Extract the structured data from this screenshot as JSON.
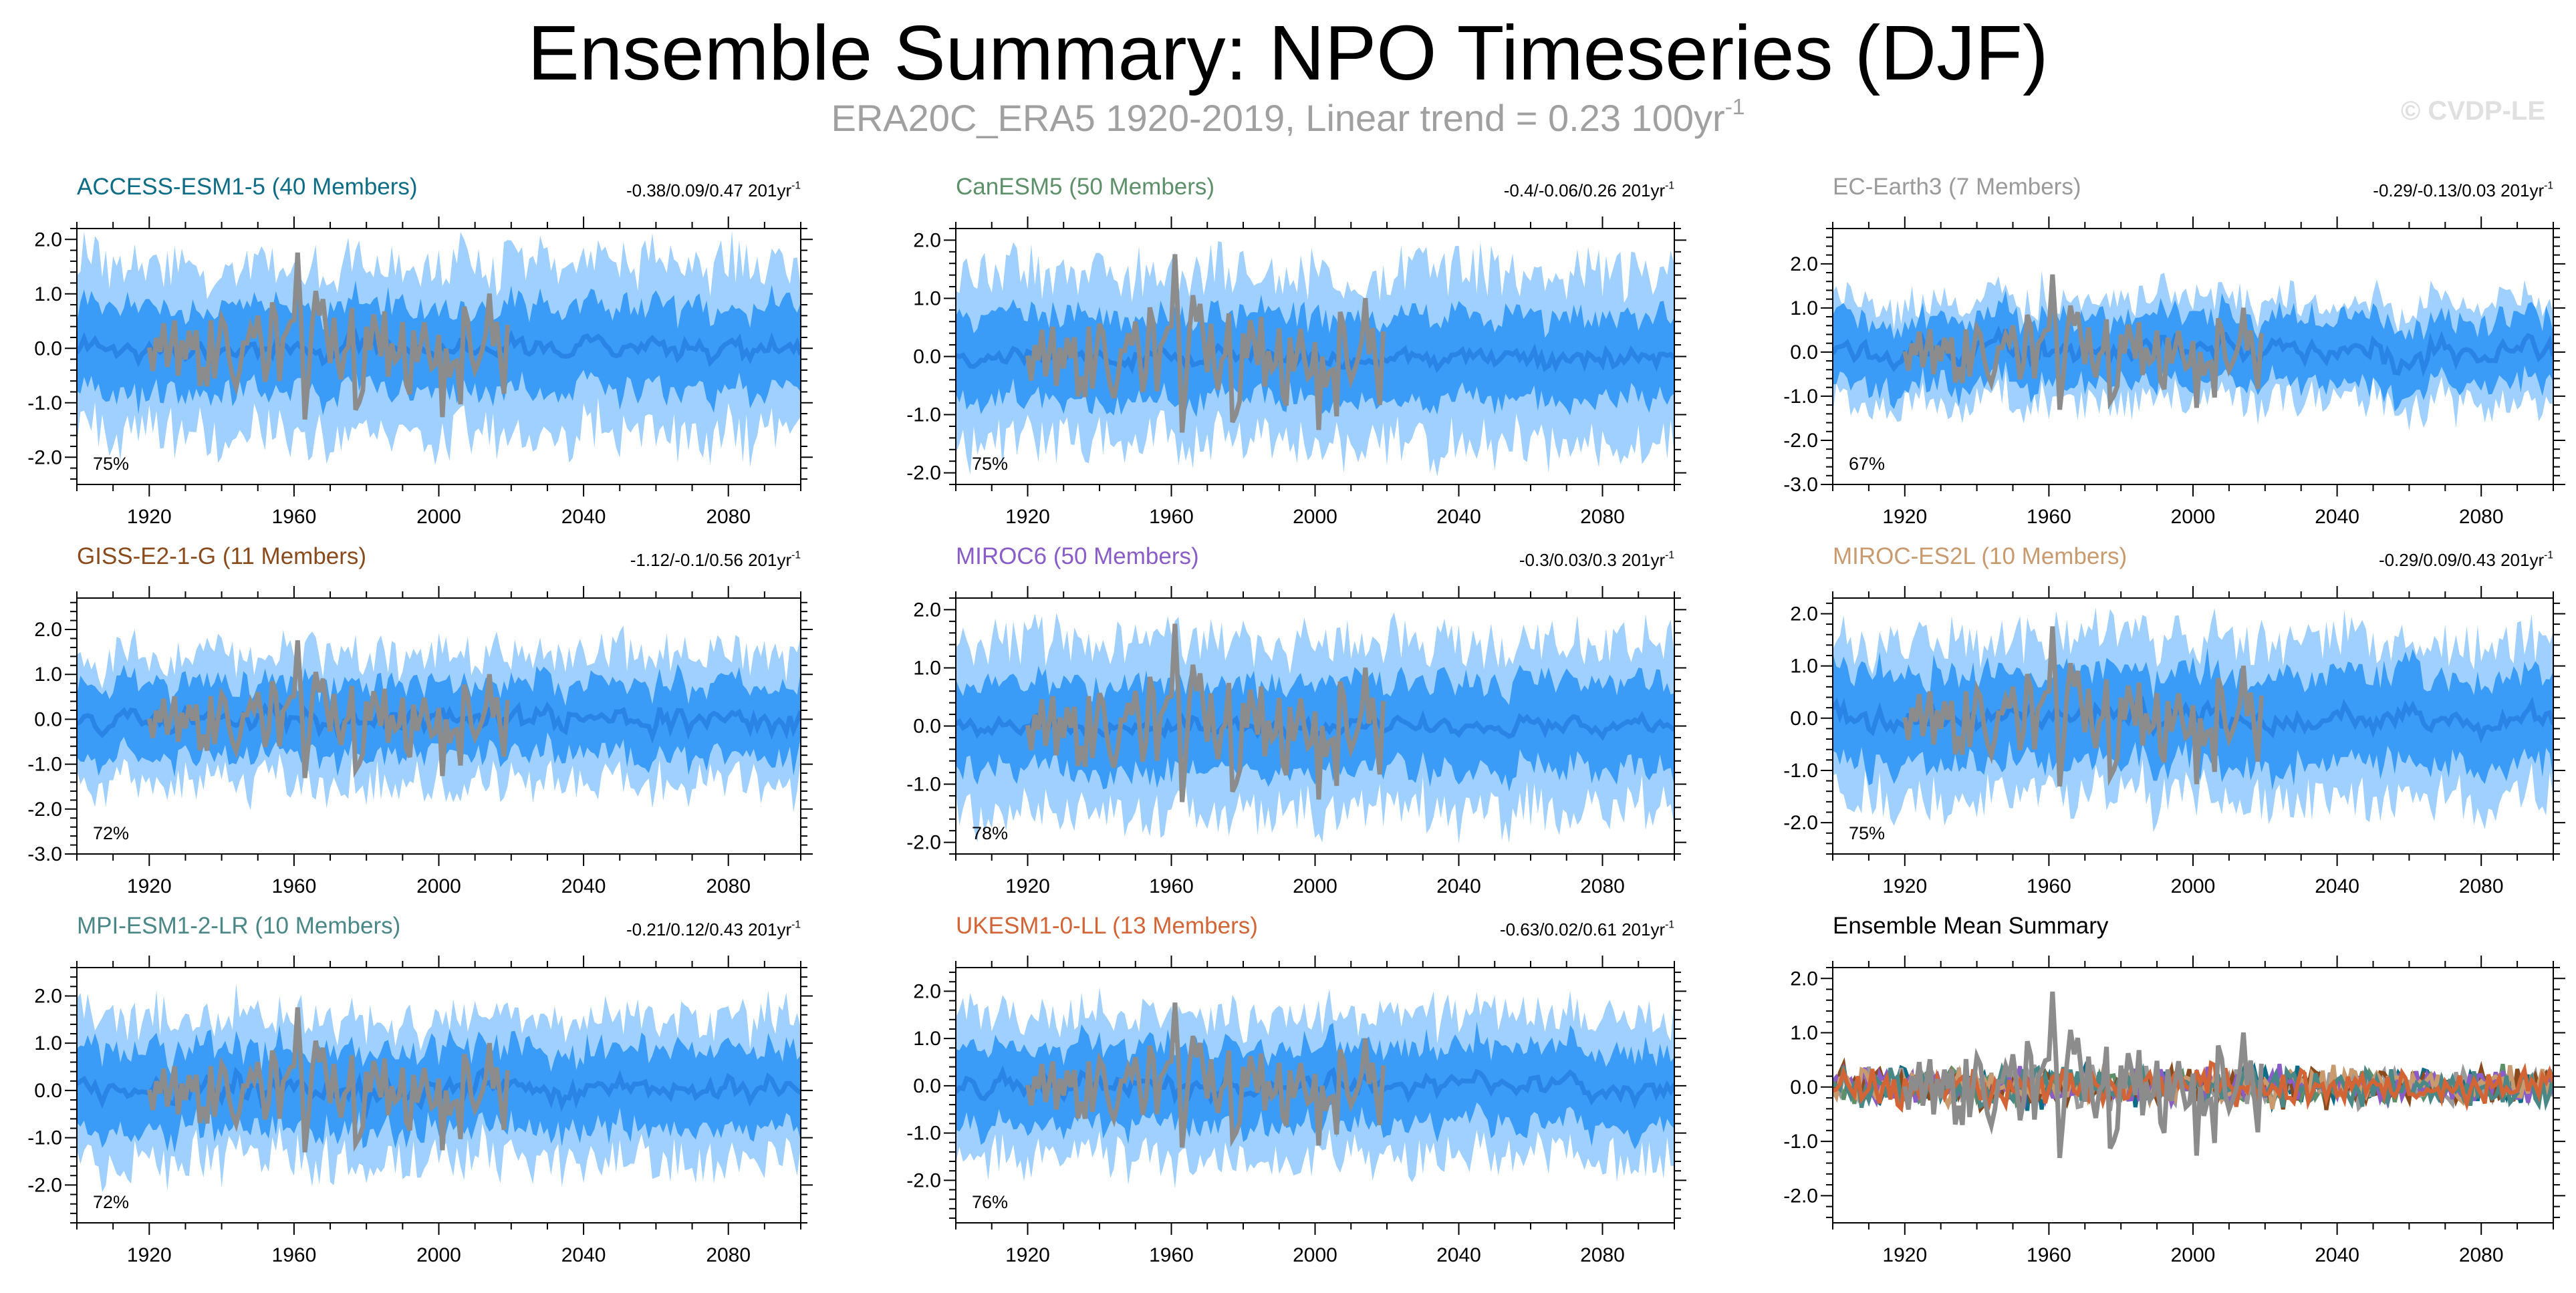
{
  "page": {
    "title": "Ensemble Summary: NPO Timeseries (DJF)",
    "subtitle": "ERA20C_ERA5 1920-2019, Linear trend = 0.23 100yr",
    "subtitle_sup": "-1",
    "credit": "© CVDP-LE"
  },
  "colors": {
    "outer_spread": "#a0d0ff",
    "inner_spread": "#3a9cf7",
    "ensemble_mean": "#2a84e6",
    "observations": "#8c8c8c"
  },
  "chart_data": [
    {
      "type": "area",
      "title": "ACCESS-ESM1-5 (40 Members)",
      "title_color": "#0e6d86",
      "trend": "-0.38/0.09/0.47 201yr",
      "trend_sup": "-1",
      "percent": "75%",
      "xlim": [
        1900,
        2100
      ],
      "xticks": [
        1920,
        1960,
        2000,
        2040,
        2080
      ],
      "ylim": [
        -2.5,
        2.2
      ],
      "yticks": [
        "2.0",
        "1.0",
        "0.0",
        "-1.0",
        "-2.0"
      ],
      "ytick_values": [
        2.0,
        1.0,
        0.0,
        -1.0,
        -2.0
      ],
      "series": [
        {
          "role": "outer",
          "spread": 1.55
        },
        {
          "role": "inner",
          "spread": 0.78
        },
        {
          "role": "mean",
          "amp": 0.18
        },
        {
          "role": "obs",
          "x_range": [
            1920,
            2019
          ]
        }
      ]
    },
    {
      "type": "area",
      "title": "CanESM5 (50 Members)",
      "title_color": "#5c9068",
      "trend": "-0.4/-0.06/0.26 201yr",
      "trend_sup": "-1",
      "percent": "75%",
      "xlim": [
        1900,
        2100
      ],
      "xticks": [
        1920,
        1960,
        2000,
        2040,
        2080
      ],
      "ylim": [
        -2.2,
        2.2
      ],
      "yticks": [
        "2.0",
        "1.0",
        "0.0",
        "-1.0",
        "-2.0"
      ],
      "ytick_values": [
        2.0,
        1.0,
        0.0,
        -1.0,
        -2.0
      ],
      "series": [
        {
          "role": "outer",
          "spread": 1.45
        },
        {
          "role": "inner",
          "spread": 0.72
        },
        {
          "role": "mean",
          "amp": 0.15
        },
        {
          "role": "obs",
          "x_range": [
            1920,
            2019
          ]
        }
      ]
    },
    {
      "type": "area",
      "title": "EC-Earth3 (7 Members)",
      "title_color": "#9a9a9a",
      "trend": "-0.29/-0.13/0.03 201yr",
      "trend_sup": "-1",
      "percent": "67%",
      "xlim": [
        1900,
        2100
      ],
      "xticks": [
        1920,
        1960,
        2000,
        2040,
        2080
      ],
      "ylim": [
        -3.0,
        2.8
      ],
      "yticks": [
        "2.0",
        "1.0",
        "0.0",
        "-1.0",
        "-2.0",
        "-3.0"
      ],
      "ytick_values": [
        2.0,
        1.0,
        0.0,
        -1.0,
        -2.0,
        -3.0
      ],
      "series": [
        {
          "role": "outer",
          "spread": 1.15
        },
        {
          "role": "inner",
          "spread": 0.75
        },
        {
          "role": "mean",
          "amp": 0.3
        },
        {
          "role": "obs",
          "x_range": [
            1920,
            2019
          ]
        }
      ]
    },
    {
      "type": "area",
      "title": "GISS-E2-1-G (11 Members)",
      "title_color": "#8a4a1c",
      "trend": "-1.12/-0.1/0.56 201yr",
      "trend_sup": "-1",
      "percent": "72%",
      "xlim": [
        1900,
        2100
      ],
      "xticks": [
        1920,
        1960,
        2000,
        2040,
        2080
      ],
      "ylim": [
        -3.0,
        2.7
      ],
      "yticks": [
        "2.0",
        "1.0",
        "0.0",
        "-1.0",
        "-2.0",
        "-3.0"
      ],
      "ytick_values": [
        2.0,
        1.0,
        0.0,
        -1.0,
        -2.0,
        -3.0
      ],
      "series": [
        {
          "role": "outer",
          "spread": 1.45
        },
        {
          "role": "inner",
          "spread": 0.8
        },
        {
          "role": "mean",
          "amp": 0.25
        },
        {
          "role": "obs",
          "x_range": [
            1920,
            2019
          ]
        }
      ]
    },
    {
      "type": "area",
      "title": "MIROC6 (50 Members)",
      "title_color": "#8a5cc8",
      "trend": "-0.3/0.03/0.3 201yr",
      "trend_sup": "-1",
      "percent": "78%",
      "xlim": [
        1900,
        2100
      ],
      "xticks": [
        1920,
        1960,
        2000,
        2040,
        2080
      ],
      "ylim": [
        -2.2,
        2.2
      ],
      "yticks": [
        "2.0",
        "1.0",
        "0.0",
        "-1.0",
        "-2.0"
      ],
      "ytick_values": [
        2.0,
        1.0,
        0.0,
        -1.0,
        -2.0
      ],
      "series": [
        {
          "role": "outer",
          "spread": 1.45
        },
        {
          "role": "inner",
          "spread": 0.75
        },
        {
          "role": "mean",
          "amp": 0.14
        },
        {
          "role": "obs",
          "x_range": [
            1920,
            2019
          ]
        }
      ]
    },
    {
      "type": "area",
      "title": "MIROC-ES2L (10 Members)",
      "title_color": "#c89a6e",
      "trend": "-0.29/0.09/0.43 201yr",
      "trend_sup": "-1",
      "percent": "75%",
      "xlim": [
        1900,
        2100
      ],
      "xticks": [
        1920,
        1960,
        2000,
        2040,
        2080
      ],
      "ylim": [
        -2.6,
        2.3
      ],
      "yticks": [
        "2.0",
        "1.0",
        "0.0",
        "-1.0",
        "-2.0"
      ],
      "ytick_values": [
        2.0,
        1.0,
        0.0,
        -1.0,
        -2.0
      ],
      "series": [
        {
          "role": "outer",
          "spread": 1.5
        },
        {
          "role": "inner",
          "spread": 0.85
        },
        {
          "role": "mean",
          "amp": 0.22
        },
        {
          "role": "obs",
          "x_range": [
            1920,
            2019
          ]
        }
      ]
    },
    {
      "type": "area",
      "title": "MPI-ESM1-2-LR (10 Members)",
      "title_color": "#4a8888",
      "trend": "-0.21/0.12/0.43 201yr",
      "trend_sup": "-1",
      "percent": "72%",
      "xlim": [
        1900,
        2100
      ],
      "xticks": [
        1920,
        1960,
        2000,
        2040,
        2080
      ],
      "ylim": [
        -2.8,
        2.6
      ],
      "yticks": [
        "2.0",
        "1.0",
        "0.0",
        "-1.0",
        "-2.0"
      ],
      "ytick_values": [
        2.0,
        1.0,
        0.0,
        -1.0,
        -2.0
      ],
      "series": [
        {
          "role": "outer",
          "spread": 1.5
        },
        {
          "role": "inner",
          "spread": 0.85
        },
        {
          "role": "mean",
          "amp": 0.25
        },
        {
          "role": "obs",
          "x_range": [
            1920,
            2019
          ]
        }
      ]
    },
    {
      "type": "area",
      "title": "UKESM1-0-LL (13 Members)",
      "title_color": "#d26436",
      "trend": "-0.63/0.02/0.61 201yr",
      "trend_sup": "-1",
      "percent": "76%",
      "xlim": [
        1900,
        2100
      ],
      "xticks": [
        1920,
        1960,
        2000,
        2040,
        2080
      ],
      "ylim": [
        -2.9,
        2.5
      ],
      "yticks": [
        "2.0",
        "1.0",
        "0.0",
        "-1.0",
        "-2.0"
      ],
      "ytick_values": [
        2.0,
        1.0,
        0.0,
        -1.0,
        -2.0
      ],
      "series": [
        {
          "role": "outer",
          "spread": 1.5
        },
        {
          "role": "inner",
          "spread": 0.82
        },
        {
          "role": "mean",
          "amp": 0.22
        },
        {
          "role": "obs",
          "x_range": [
            1920,
            2019
          ]
        }
      ]
    },
    {
      "type": "line",
      "title": "Ensemble Mean Summary",
      "title_color": "#000000",
      "trend": "",
      "trend_sup": "",
      "percent": "",
      "xlim": [
        1900,
        2100
      ],
      "xticks": [
        1920,
        1960,
        2000,
        2040,
        2080
      ],
      "ylim": [
        -2.5,
        2.2
      ],
      "yticks": [
        "2.0",
        "1.0",
        "0.0",
        "-1.0",
        "-2.0"
      ],
      "ytick_values": [
        2.0,
        1.0,
        0.0,
        -1.0,
        -2.0
      ],
      "series": [
        {
          "role": "members",
          "colors": [
            "#0e6d86",
            "#5c9068",
            "#9a9a9a",
            "#8a4a1c",
            "#8a5cc8",
            "#c89a6e",
            "#4a8888",
            "#d26436"
          ],
          "amp": 0.32
        },
        {
          "role": "obs",
          "x_range": [
            1920,
            2019
          ]
        }
      ]
    }
  ]
}
